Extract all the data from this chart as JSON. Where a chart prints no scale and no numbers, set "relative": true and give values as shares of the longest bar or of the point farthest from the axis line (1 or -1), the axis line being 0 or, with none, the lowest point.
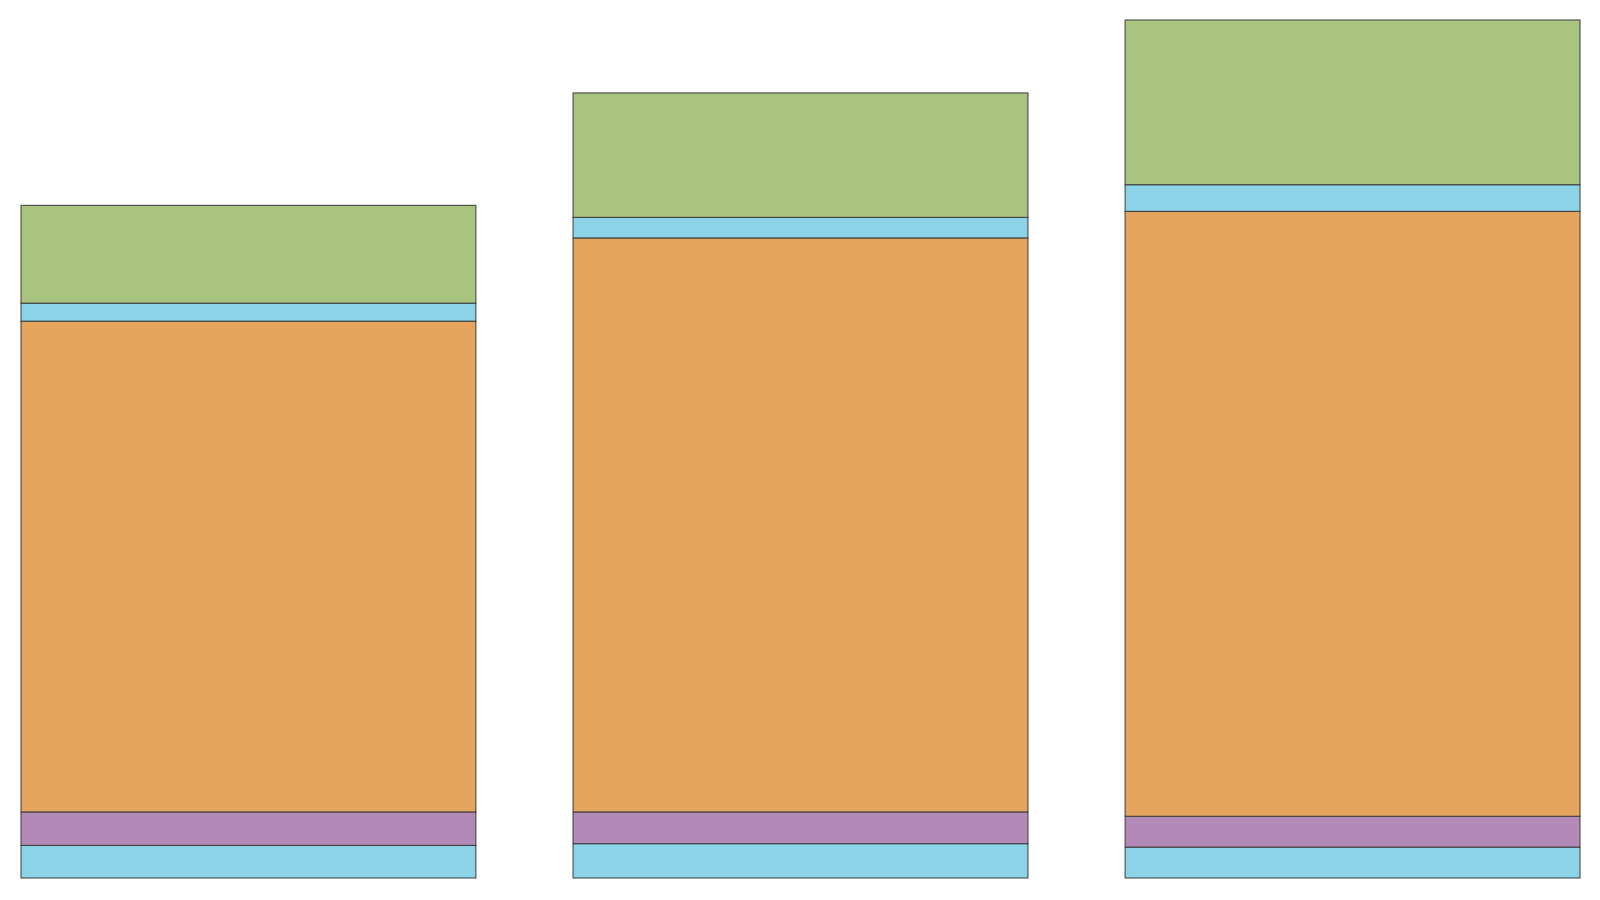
{
  "chart_data": {
    "type": "bar",
    "relative": true,
    "stacked": true,
    "categories": [
      null,
      null,
      null
    ],
    "series": [
      {
        "color": "#8dd3e7",
        "values": [
          0.038,
          0.04,
          0.036
        ]
      },
      {
        "color": "#b389b8",
        "values": [
          0.039,
          0.037,
          0.036
        ]
      },
      {
        "color": "#e6a55e",
        "values": [
          0.572,
          0.669,
          0.705
        ]
      },
      {
        "color": "#8dd3e7",
        "values": [
          0.021,
          0.024,
          0.031
        ]
      },
      {
        "color": "#a9c47f",
        "values": [
          0.114,
          0.145,
          0.192
        ]
      }
    ]
  }
}
